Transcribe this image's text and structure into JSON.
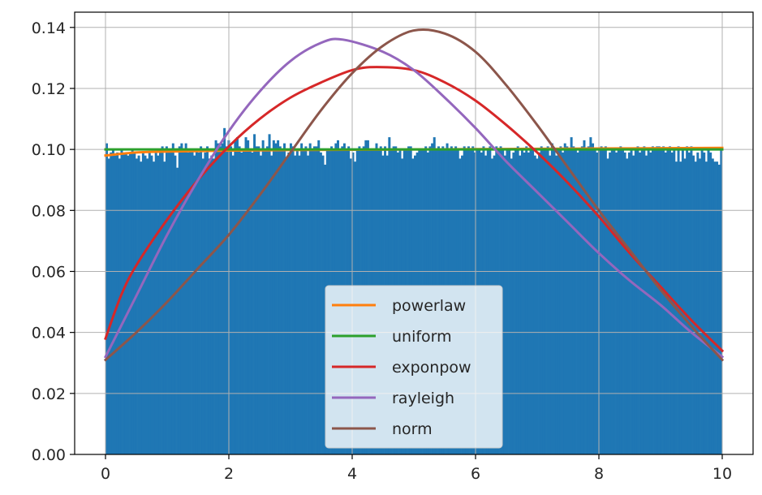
{
  "chart_data": {
    "type": "histogram+line",
    "title": "",
    "xlabel": "",
    "ylabel": "",
    "xlim": [
      -0.5,
      10.5
    ],
    "ylim": [
      0,
      0.145
    ],
    "xticks": [
      0,
      2,
      4,
      6,
      8,
      10
    ],
    "xtick_labels": [
      "0",
      "2",
      "4",
      "6",
      "8",
      "10"
    ],
    "yticks": [
      0.0,
      0.02,
      0.04,
      0.06,
      0.08,
      0.1,
      0.12,
      0.14
    ],
    "ytick_labels": [
      "0.00",
      "0.02",
      "0.04",
      "0.06",
      "0.08",
      "0.10",
      "0.12",
      "0.14"
    ],
    "grid": true,
    "legend_position": "lower-center",
    "histogram": {
      "color": "#1f77b4",
      "bin_edges": [
        0,
        10
      ],
      "values": [
        0.102,
        0.097,
        0.099,
        0.1,
        0.098,
        0.099,
        0.097,
        0.1,
        0.099,
        0.099,
        0.098,
        0.099,
        0.1,
        0.099,
        0.097,
        0.098,
        0.096,
        0.099,
        0.098,
        0.097,
        0.099,
        0.098,
        0.096,
        0.099,
        0.098,
        0.1,
        0.101,
        0.096,
        0.101,
        0.1,
        0.099,
        0.102,
        0.098,
        0.094,
        0.101,
        0.102,
        0.1,
        0.102,
        0.099,
        0.1,
        0.1,
        0.098,
        0.1,
        0.099,
        0.101,
        0.097,
        0.099,
        0.101,
        0.097,
        0.098,
        0.097,
        0.103,
        0.102,
        0.101,
        0.102,
        0.107,
        0.101,
        0.103,
        0.101,
        0.098,
        0.103,
        0.104,
        0.101,
        0.099,
        0.1,
        0.104,
        0.103,
        0.1,
        0.099,
        0.105,
        0.101,
        0.101,
        0.098,
        0.103,
        0.1,
        0.101,
        0.105,
        0.098,
        0.103,
        0.102,
        0.103,
        0.101,
        0.1,
        0.102,
        0.097,
        0.099,
        0.102,
        0.101,
        0.098,
        0.1,
        0.098,
        0.102,
        0.1,
        0.101,
        0.098,
        0.102,
        0.1,
        0.101,
        0.101,
        0.103,
        0.099,
        0.098,
        0.095,
        0.1,
        0.1,
        0.101,
        0.1,
        0.102,
        0.103,
        0.1,
        0.101,
        0.102,
        0.1,
        0.101,
        0.097,
        0.099,
        0.096,
        0.1,
        0.101,
        0.1,
        0.101,
        0.103,
        0.103,
        0.1,
        0.1,
        0.1,
        0.102,
        0.1,
        0.101,
        0.098,
        0.101,
        0.098,
        0.104,
        0.1,
        0.101,
        0.101,
        0.099,
        0.1,
        0.097,
        0.1,
        0.1,
        0.101,
        0.101,
        0.097,
        0.098,
        0.099,
        0.1,
        0.1,
        0.1,
        0.101,
        0.099,
        0.101,
        0.102,
        0.104,
        0.1,
        0.101,
        0.1,
        0.101,
        0.1,
        0.102,
        0.1,
        0.101,
        0.1,
        0.101,
        0.1,
        0.097,
        0.098,
        0.101,
        0.1,
        0.101,
        0.1,
        0.101,
        0.099,
        0.1,
        0.1,
        0.099,
        0.101,
        0.098,
        0.1,
        0.101,
        0.097,
        0.098,
        0.101,
        0.1,
        0.101,
        0.1,
        0.098,
        0.1,
        0.1,
        0.097,
        0.099,
        0.1,
        0.101,
        0.098,
        0.1,
        0.099,
        0.101,
        0.099,
        0.101,
        0.1,
        0.098,
        0.097,
        0.099,
        0.101,
        0.1,
        0.1,
        0.101,
        0.098,
        0.102,
        0.1,
        0.098,
        0.1,
        0.101,
        0.099,
        0.102,
        0.101,
        0.1,
        0.104,
        0.101,
        0.1,
        0.099,
        0.1,
        0.101,
        0.103,
        0.1,
        0.101,
        0.104,
        0.102,
        0.1,
        0.099,
        0.1,
        0.101,
        0.1,
        0.101,
        0.097,
        0.099,
        0.1,
        0.1,
        0.099,
        0.1,
        0.101,
        0.1,
        0.099,
        0.097,
        0.099,
        0.1,
        0.098,
        0.1,
        0.101,
        0.099,
        0.1,
        0.101,
        0.098,
        0.1,
        0.099,
        0.101,
        0.1,
        0.101,
        0.101,
        0.1,
        0.101,
        0.099,
        0.1,
        0.101,
        0.099,
        0.1,
        0.096,
        0.101,
        0.096,
        0.1,
        0.097,
        0.101,
        0.099,
        0.101,
        0.098,
        0.096,
        0.099,
        0.097,
        0.1,
        0.099,
        0.096,
        0.1,
        0.099,
        0.097,
        0.096,
        0.096,
        0.095,
        0.1
      ]
    },
    "series": [
      {
        "name": "powerlaw",
        "color": "#ff7f0e",
        "x": [
          0,
          0.5,
          1,
          2,
          3,
          4,
          5,
          6,
          7,
          8,
          9,
          10
        ],
        "y": [
          0.098,
          0.099,
          0.0993,
          0.0996,
          0.0998,
          0.0999,
          0.1,
          0.1001,
          0.1002,
          0.1003,
          0.1004,
          0.1005
        ]
      },
      {
        "name": "uniform",
        "color": "#2ca02c",
        "x": [
          0,
          10
        ],
        "y": [
          0.1,
          0.1
        ]
      },
      {
        "name": "exponpow",
        "color": "#d62728",
        "x": [
          0,
          0.25,
          0.5,
          1,
          1.5,
          2,
          2.5,
          3,
          3.5,
          4,
          4.4,
          5,
          5.5,
          6,
          6.5,
          7,
          7.5,
          8,
          8.5,
          9,
          9.5,
          10
        ],
        "y": [
          0.038,
          0.052,
          0.062,
          0.077,
          0.09,
          0.101,
          0.11,
          0.117,
          0.122,
          0.126,
          0.127,
          0.126,
          0.122,
          0.116,
          0.108,
          0.099,
          0.089,
          0.078,
          0.066,
          0.055,
          0.044,
          0.034
        ]
      },
      {
        "name": "rayleigh",
        "color": "#9467bd",
        "x": [
          0,
          0.5,
          1,
          1.5,
          2,
          2.5,
          3,
          3.5,
          3.85,
          4.5,
          5,
          5.5,
          6,
          6.5,
          7,
          7.5,
          8,
          8.5,
          9,
          9.5,
          10
        ],
        "y": [
          0.032,
          0.052,
          0.072,
          0.09,
          0.106,
          0.119,
          0.129,
          0.135,
          0.136,
          0.132,
          0.126,
          0.117,
          0.107,
          0.096,
          0.086,
          0.076,
          0.066,
          0.057,
          0.049,
          0.04,
          0.032
        ]
      },
      {
        "name": "norm",
        "color": "#8c564b",
        "x": [
          0,
          0.5,
          1,
          1.5,
          2,
          2.5,
          3,
          3.5,
          4,
          4.5,
          5,
          5.5,
          6,
          6.5,
          7,
          7.5,
          8,
          8.5,
          9,
          9.5,
          10
        ],
        "y": [
          0.031,
          0.04,
          0.05,
          0.061,
          0.072,
          0.085,
          0.099,
          0.113,
          0.125,
          0.134,
          0.139,
          0.138,
          0.132,
          0.121,
          0.108,
          0.094,
          0.08,
          0.067,
          0.054,
          0.042,
          0.031
        ]
      }
    ]
  }
}
